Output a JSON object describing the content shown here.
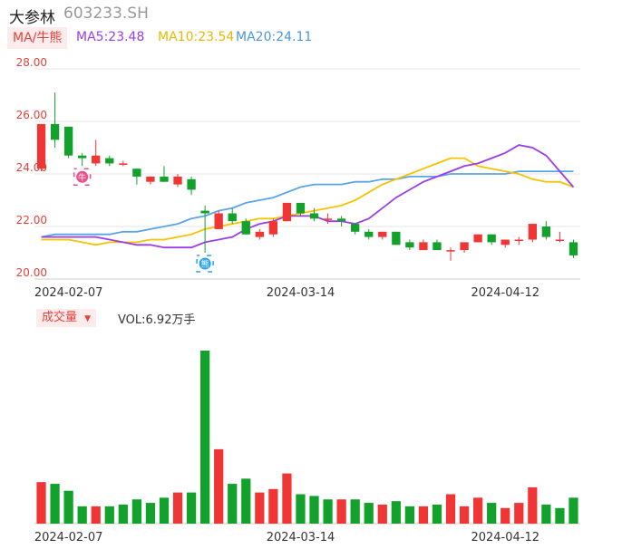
{
  "header": {
    "name": "大参林",
    "code": "603233.SH"
  },
  "ma_legend": {
    "label": "MA/牛熊",
    "ma5": "MA5:23.48",
    "ma10": "MA10:23.54",
    "ma20": "MA20:24.11"
  },
  "volume_legend": {
    "label": "成交量",
    "value": "VOL:6.92万手"
  },
  "colors": {
    "up": "#f03535",
    "down": "#12a12a",
    "ma5": "#9b3de6",
    "ma10": "#f5c400",
    "ma20": "#5aa5e6",
    "grid": "#e6e6e6"
  },
  "chart_data": [
    {
      "type": "candlestick",
      "y_ticks": [
        "28.00",
        "26.00",
        "24.00",
        "22.00",
        "20.00"
      ],
      "ylim": [
        20,
        28
      ],
      "x_tick_labels": [
        {
          "index": 2,
          "label": "2024-02-07"
        },
        {
          "index": 19,
          "label": "2024-03-14"
        },
        {
          "index": 34,
          "label": "2024-04-12"
        }
      ],
      "markers": [
        {
          "index": 3,
          "label": "牛",
          "kind": "bull"
        },
        {
          "index": 12,
          "label": "熊",
          "kind": "bear"
        }
      ],
      "candles": [
        {
          "o": 24.2,
          "c": 25.9,
          "h": 25.9,
          "l": 24.1
        },
        {
          "o": 25.9,
          "c": 25.3,
          "h": 27.1,
          "l": 25.0
        },
        {
          "o": 25.8,
          "c": 24.7,
          "h": 25.8,
          "l": 24.6
        },
        {
          "o": 24.7,
          "c": 24.6,
          "h": 24.8,
          "l": 24.3
        },
        {
          "o": 24.4,
          "c": 24.7,
          "h": 25.3,
          "l": 24.3
        },
        {
          "o": 24.6,
          "c": 24.4,
          "h": 24.7,
          "l": 24.3
        },
        {
          "o": 24.4,
          "c": 24.4,
          "h": 24.5,
          "l": 24.3
        },
        {
          "o": 24.2,
          "c": 23.9,
          "h": 24.2,
          "l": 23.6
        },
        {
          "o": 23.7,
          "c": 23.9,
          "h": 23.9,
          "l": 23.6
        },
        {
          "o": 23.9,
          "c": 23.7,
          "h": 24.3,
          "l": 23.7
        },
        {
          "o": 23.6,
          "c": 23.9,
          "h": 24.0,
          "l": 23.5
        },
        {
          "o": 23.8,
          "c": 23.4,
          "h": 23.9,
          "l": 23.2
        },
        {
          "o": 22.6,
          "c": 22.5,
          "h": 22.8,
          "l": 21.0
        },
        {
          "o": 21.9,
          "c": 22.5,
          "h": 22.6,
          "l": 21.9
        },
        {
          "o": 22.5,
          "c": 22.2,
          "h": 22.7,
          "l": 22.1
        },
        {
          "o": 22.2,
          "c": 21.7,
          "h": 22.3,
          "l": 21.7
        },
        {
          "o": 21.6,
          "c": 21.8,
          "h": 21.9,
          "l": 21.5
        },
        {
          "o": 21.7,
          "c": 22.2,
          "h": 22.3,
          "l": 21.6
        },
        {
          "o": 22.2,
          "c": 22.9,
          "h": 22.9,
          "l": 22.2
        },
        {
          "o": 22.9,
          "c": 22.5,
          "h": 22.9,
          "l": 22.4
        },
        {
          "o": 22.5,
          "c": 22.3,
          "h": 22.7,
          "l": 22.2
        },
        {
          "o": 22.3,
          "c": 22.3,
          "h": 22.5,
          "l": 22.1
        },
        {
          "o": 22.3,
          "c": 22.2,
          "h": 22.4,
          "l": 22.0
        },
        {
          "o": 22.1,
          "c": 21.8,
          "h": 22.1,
          "l": 21.7
        },
        {
          "o": 21.8,
          "c": 21.6,
          "h": 21.9,
          "l": 21.5
        },
        {
          "o": 21.6,
          "c": 21.8,
          "h": 21.8,
          "l": 21.5
        },
        {
          "o": 21.8,
          "c": 21.3,
          "h": 21.8,
          "l": 21.3
        },
        {
          "o": 21.4,
          "c": 21.2,
          "h": 21.5,
          "l": 21.1
        },
        {
          "o": 21.1,
          "c": 21.4,
          "h": 21.5,
          "l": 21.1
        },
        {
          "o": 21.4,
          "c": 21.1,
          "h": 21.5,
          "l": 21.1
        },
        {
          "o": 21.1,
          "c": 21.1,
          "h": 21.2,
          "l": 20.7
        },
        {
          "o": 21.1,
          "c": 21.4,
          "h": 21.4,
          "l": 21.0
        },
        {
          "o": 21.4,
          "c": 21.7,
          "h": 21.7,
          "l": 21.4
        },
        {
          "o": 21.7,
          "c": 21.4,
          "h": 21.7,
          "l": 21.3
        },
        {
          "o": 21.3,
          "c": 21.5,
          "h": 21.5,
          "l": 21.2
        },
        {
          "o": 21.5,
          "c": 21.5,
          "h": 21.6,
          "l": 21.3
        },
        {
          "o": 21.5,
          "c": 22.1,
          "h": 22.1,
          "l": 21.4
        },
        {
          "o": 22.0,
          "c": 21.6,
          "h": 22.2,
          "l": 21.5
        },
        {
          "o": 21.5,
          "c": 21.5,
          "h": 21.8,
          "l": 21.4
        },
        {
          "o": 21.4,
          "c": 20.9,
          "h": 21.5,
          "l": 20.8
        }
      ],
      "ma5": [
        21.6,
        21.6,
        21.6,
        21.6,
        21.6,
        21.5,
        21.4,
        21.3,
        21.3,
        21.2,
        21.2,
        21.2,
        21.4,
        21.5,
        21.6,
        21.9,
        22.1,
        22.2,
        22.4,
        22.4,
        22.4,
        22.2,
        22.2,
        22.1,
        22.3,
        22.7,
        23.1,
        23.4,
        23.7,
        23.9,
        24.1,
        24.3,
        24.4,
        24.6,
        24.8,
        25.1,
        25.0,
        24.7,
        24.1,
        23.5
      ],
      "ma10": [
        21.5,
        21.5,
        21.5,
        21.4,
        21.3,
        21.4,
        21.4,
        21.4,
        21.5,
        21.5,
        21.6,
        21.7,
        21.9,
        22.0,
        22.1,
        22.2,
        22.3,
        22.3,
        22.4,
        22.5,
        22.6,
        22.7,
        22.8,
        23.0,
        23.3,
        23.6,
        23.8,
        24.0,
        24.2,
        24.4,
        24.6,
        24.6,
        24.3,
        24.2,
        24.1,
        24.0,
        23.8,
        23.7,
        23.7,
        23.5
      ],
      "ma20": [
        21.6,
        21.7,
        21.7,
        21.7,
        21.7,
        21.7,
        21.8,
        21.8,
        21.9,
        22.0,
        22.1,
        22.3,
        22.4,
        22.6,
        22.7,
        22.9,
        23.0,
        23.1,
        23.3,
        23.5,
        23.6,
        23.6,
        23.6,
        23.7,
        23.7,
        23.8,
        23.8,
        23.9,
        23.9,
        23.9,
        24.0,
        24.0,
        24.0,
        24.0,
        24.0,
        24.1,
        24.1,
        24.1,
        24.1,
        24.1
      ]
    },
    {
      "type": "bar",
      "title": "成交量",
      "ylim": [
        0,
        100
      ],
      "x_tick_labels": [
        {
          "index": 2,
          "label": "2024-02-07"
        },
        {
          "index": 19,
          "label": "2024-03-14"
        },
        {
          "index": 34,
          "label": "2024-04-12"
        }
      ],
      "values": [
        24,
        23,
        19,
        10,
        10,
        10,
        11,
        14,
        12,
        15,
        18,
        18,
        100,
        43,
        23,
        26,
        18,
        20,
        29,
        17,
        16,
        14,
        14,
        14,
        12,
        11,
        13,
        10,
        10,
        11,
        17,
        10,
        15,
        12,
        9,
        12,
        21,
        11,
        9,
        15
      ],
      "up": [
        true,
        false,
        false,
        false,
        true,
        false,
        false,
        false,
        false,
        false,
        true,
        false,
        false,
        true,
        false,
        false,
        true,
        true,
        true,
        false,
        false,
        false,
        true,
        false,
        false,
        true,
        false,
        false,
        true,
        false,
        true,
        true,
        true,
        false,
        true,
        true,
        true,
        false,
        false,
        false
      ]
    }
  ]
}
